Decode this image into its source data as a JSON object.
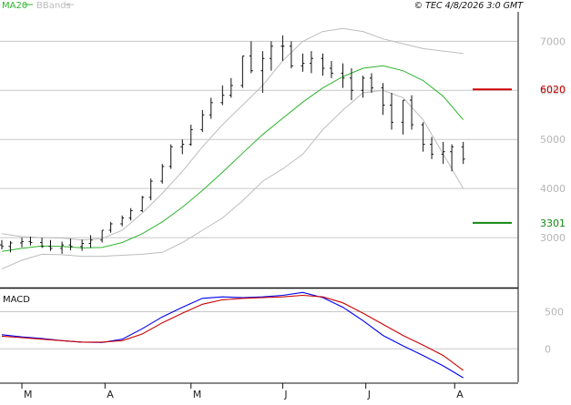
{
  "header": {
    "legend": [
      {
        "name": "MA20",
        "color": "#2db52d"
      },
      {
        "name": "BBands",
        "color": "#bdbdbd"
      }
    ],
    "timestamp": "© TEC 4/8/2026 3:0 GMT"
  },
  "chart_data": [
    {
      "type": "ohlc",
      "ylim": [
        2000,
        7600
      ],
      "y_ticks": [
        "7000",
        "6000",
        "5000",
        "4000",
        "3000"
      ],
      "x_ticks": [
        "M",
        "A",
        "M",
        "J",
        "J",
        "A"
      ],
      "x_tick_dates": [
        "2025-03-03",
        "2025-04-01",
        "2025-05-01",
        "2025-06-02",
        "2025-07-01",
        "2025-08-01"
      ],
      "x_range": [
        "2025-02-24",
        "2025-08-06"
      ],
      "grid": true,
      "colors": {
        "price": "#111111",
        "ma": "#2db52d",
        "bands": "#bdbdbd",
        "resistance": "#cc0000",
        "support": "#118811"
      },
      "levels": [
        {
          "name": "resistance",
          "value": "6020",
          "color": "#cc0000"
        },
        {
          "name": "support",
          "value": "3301",
          "color": "#118811"
        }
      ],
      "series": [
        {
          "name": "MA20",
          "x": [
            "2025-02-24",
            "2025-03-03",
            "2025-03-10",
            "2025-03-17",
            "2025-03-24",
            "2025-03-31",
            "2025-04-07",
            "2025-04-14",
            "2025-04-21",
            "2025-04-28",
            "2025-05-05",
            "2025-05-12",
            "2025-05-19",
            "2025-05-26",
            "2025-06-02",
            "2025-06-09",
            "2025-06-16",
            "2025-06-23",
            "2025-06-30",
            "2025-07-07",
            "2025-07-14",
            "2025-07-21",
            "2025-07-28",
            "2025-08-04"
          ],
          "values": [
            2720,
            2780,
            2830,
            2820,
            2790,
            2800,
            2900,
            3080,
            3320,
            3620,
            3960,
            4330,
            4720,
            5100,
            5430,
            5760,
            6050,
            6280,
            6450,
            6500,
            6400,
            6200,
            5880,
            5400
          ]
        },
        {
          "name": "BBands upper",
          "x": [
            "2025-02-24",
            "2025-03-03",
            "2025-03-10",
            "2025-03-17",
            "2025-03-24",
            "2025-03-31",
            "2025-04-07",
            "2025-04-14",
            "2025-04-21",
            "2025-04-28",
            "2025-05-05",
            "2025-05-12",
            "2025-05-19",
            "2025-05-26",
            "2025-06-02",
            "2025-06-09",
            "2025-06-16",
            "2025-06-23",
            "2025-06-30",
            "2025-07-07",
            "2025-07-14",
            "2025-07-21",
            "2025-07-28",
            "2025-08-04"
          ],
          "values": [
            3080,
            3020,
            3000,
            2990,
            2950,
            2980,
            3150,
            3500,
            3900,
            4350,
            4850,
            5300,
            5700,
            6100,
            6600,
            7000,
            7200,
            7260,
            7200,
            7050,
            6950,
            6850,
            6800,
            6750
          ]
        },
        {
          "name": "BBands lower",
          "x": [
            "2025-02-24",
            "2025-03-03",
            "2025-03-10",
            "2025-03-17",
            "2025-03-24",
            "2025-03-31",
            "2025-04-07",
            "2025-04-14",
            "2025-04-21",
            "2025-04-28",
            "2025-05-05",
            "2025-05-12",
            "2025-05-19",
            "2025-05-26",
            "2025-06-02",
            "2025-06-09",
            "2025-06-16",
            "2025-06-23",
            "2025-06-30",
            "2025-07-07",
            "2025-07-14",
            "2025-07-21",
            "2025-07-28",
            "2025-08-04"
          ],
          "values": [
            2360,
            2540,
            2660,
            2650,
            2620,
            2620,
            2640,
            2660,
            2700,
            2900,
            3150,
            3400,
            3750,
            4150,
            4400,
            4700,
            5200,
            5600,
            5950,
            6000,
            5850,
            5400,
            4700,
            4000
          ]
        }
      ],
      "candles": {
        "x": [
          "2025-02-24",
          "2025-02-27",
          "2025-03-03",
          "2025-03-06",
          "2025-03-10",
          "2025-03-13",
          "2025-03-17",
          "2025-03-20",
          "2025-03-24",
          "2025-03-27",
          "2025-03-31",
          "2025-04-03",
          "2025-04-07",
          "2025-04-10",
          "2025-04-14",
          "2025-04-17",
          "2025-04-21",
          "2025-04-24",
          "2025-04-28",
          "2025-05-01",
          "2025-05-05",
          "2025-05-08",
          "2025-05-12",
          "2025-05-15",
          "2025-05-19",
          "2025-05-22",
          "2025-05-26",
          "2025-05-29",
          "2025-06-02",
          "2025-06-05",
          "2025-06-09",
          "2025-06-12",
          "2025-06-16",
          "2025-06-19",
          "2025-06-23",
          "2025-06-26",
          "2025-06-30",
          "2025-07-03",
          "2025-07-07",
          "2025-07-10",
          "2025-07-14",
          "2025-07-17",
          "2025-07-21",
          "2025-07-24",
          "2025-07-28",
          "2025-07-31",
          "2025-08-04"
        ],
        "open": [
          2850,
          2820,
          2890,
          2920,
          2900,
          2820,
          2780,
          2850,
          2820,
          2880,
          2950,
          3150,
          3280,
          3400,
          3550,
          3820,
          4150,
          4450,
          4850,
          4900,
          5200,
          5500,
          5750,
          5900,
          6100,
          6700,
          6400,
          6650,
          6900,
          6900,
          6500,
          6550,
          6650,
          6450,
          6350,
          6250,
          6000,
          6250,
          6050,
          5700,
          5350,
          5800,
          5300,
          4900,
          4700,
          4750,
          4850
        ],
        "high": [
          2950,
          2930,
          3000,
          3020,
          3000,
          2950,
          2920,
          2980,
          2960,
          3050,
          3150,
          3320,
          3450,
          3600,
          3850,
          4200,
          4500,
          4900,
          5000,
          5300,
          5600,
          5850,
          6100,
          6250,
          6700,
          7000,
          6800,
          7000,
          7120,
          7000,
          6750,
          6800,
          6750,
          6600,
          6550,
          6450,
          6300,
          6350,
          6150,
          5950,
          5800,
          5900,
          5350,
          5050,
          4950,
          4900,
          4950
        ],
        "low": [
          2760,
          2700,
          2800,
          2840,
          2790,
          2730,
          2670,
          2740,
          2730,
          2790,
          2900,
          3100,
          3230,
          3350,
          3520,
          3760,
          4100,
          4400,
          4700,
          4870,
          5150,
          5420,
          5700,
          5850,
          6050,
          6350,
          5950,
          6400,
          6600,
          6450,
          6380,
          6350,
          6300,
          6250,
          6050,
          5800,
          5850,
          5950,
          5500,
          5200,
          5100,
          5200,
          4750,
          4600,
          4500,
          4350,
          4500
        ],
        "close": [
          2820,
          2890,
          2920,
          2900,
          2820,
          2780,
          2850,
          2820,
          2880,
          2950,
          3150,
          3280,
          3400,
          3550,
          3820,
          4150,
          4450,
          4850,
          4900,
          5200,
          5500,
          5750,
          5900,
          6100,
          6700,
          6400,
          6650,
          6900,
          6900,
          6500,
          6550,
          6650,
          6450,
          6350,
          6250,
          6000,
          6250,
          6050,
          5700,
          5350,
          5800,
          5300,
          4900,
          4700,
          4750,
          4850,
          4600
        ]
      }
    },
    {
      "type": "line",
      "title": "MACD",
      "ylim": [
        -450,
        800
      ],
      "y_ticks": [
        "500",
        "0"
      ],
      "grid": true,
      "series": [
        {
          "name": "MACD",
          "color": "#0000ee",
          "x": [
            "2025-02-24",
            "2025-03-03",
            "2025-03-10",
            "2025-03-17",
            "2025-03-24",
            "2025-03-31",
            "2025-04-07",
            "2025-04-14",
            "2025-04-21",
            "2025-04-28",
            "2025-05-05",
            "2025-05-12",
            "2025-05-19",
            "2025-05-26",
            "2025-06-02",
            "2025-06-09",
            "2025-06-16",
            "2025-06-23",
            "2025-06-30",
            "2025-07-07",
            "2025-07-14",
            "2025-07-21",
            "2025-07-28",
            "2025-08-04"
          ],
          "values": [
            190,
            160,
            140,
            110,
            90,
            85,
            130,
            270,
            430,
            560,
            680,
            700,
            690,
            700,
            720,
            760,
            690,
            560,
            380,
            180,
            40,
            -90,
            -230,
            -390
          ]
        },
        {
          "name": "Signal",
          "color": "#cc0000",
          "x": [
            "2025-02-24",
            "2025-03-03",
            "2025-03-10",
            "2025-03-17",
            "2025-03-24",
            "2025-03-31",
            "2025-04-07",
            "2025-04-14",
            "2025-04-21",
            "2025-04-28",
            "2025-05-05",
            "2025-05-12",
            "2025-05-19",
            "2025-05-26",
            "2025-06-02",
            "2025-06-09",
            "2025-06-16",
            "2025-06-23",
            "2025-06-30",
            "2025-07-07",
            "2025-07-14",
            "2025-07-21",
            "2025-07-28",
            "2025-08-04"
          ],
          "values": [
            170,
            150,
            130,
            110,
            90,
            90,
            110,
            200,
            350,
            480,
            600,
            660,
            680,
            690,
            700,
            720,
            700,
            620,
            480,
            330,
            180,
            50,
            -90,
            -290
          ]
        }
      ]
    }
  ]
}
